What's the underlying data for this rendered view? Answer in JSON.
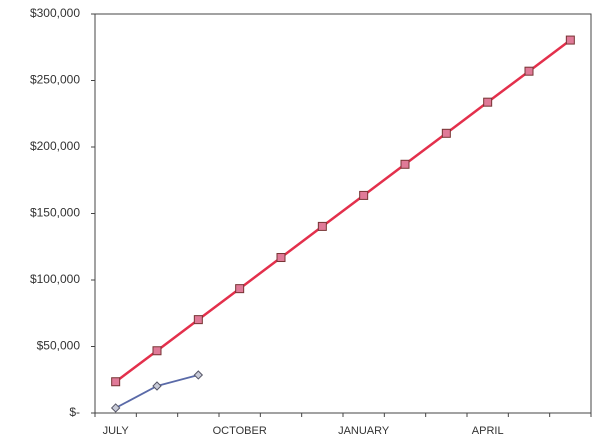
{
  "chart_data": {
    "type": "line",
    "categories": [
      "JULY",
      null,
      null,
      "OCTOBER",
      null,
      null,
      "JANUARY",
      null,
      null,
      "APRIL",
      null,
      null
    ],
    "series": [
      {
        "color": "#e3304c",
        "marker_color": "#e07a98",
        "marker": "square",
        "values": [
          23500,
          46800,
          70200,
          93500,
          116900,
          140300,
          163600,
          187000,
          210300,
          233700,
          257000,
          280400
        ]
      },
      {
        "color": "#5a6aa8",
        "marker_color": "#c8cbd8",
        "marker": "diamond",
        "values": [
          3800,
          20300,
          28600,
          null,
          null,
          null,
          null,
          null,
          null,
          null,
          null,
          null
        ]
      }
    ],
    "ylim": [
      0,
      300000
    ],
    "yticks": [
      {
        "value": 0,
        "label": "$-"
      },
      {
        "value": 50000,
        "label": "$50,000"
      },
      {
        "value": 100000,
        "label": "$100,000"
      },
      {
        "value": 150000,
        "label": "$150,000"
      },
      {
        "value": 200000,
        "label": "$200,000"
      },
      {
        "value": 250000,
        "label": "$250,000"
      },
      {
        "value": 300000,
        "label": "$300,000"
      }
    ],
    "grid": false
  }
}
